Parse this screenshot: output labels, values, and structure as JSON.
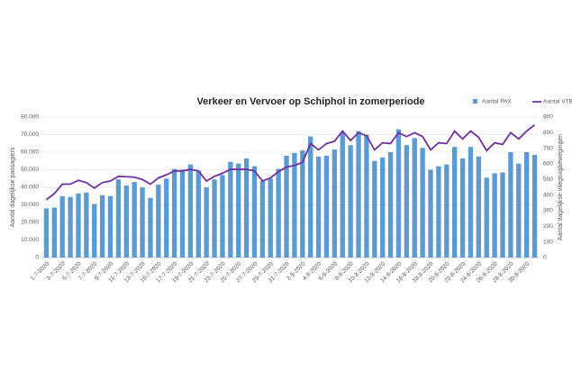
{
  "chart_data": {
    "type": "bar",
    "title": "Verkeer en Vervoer op Schiphol in zomerperiode",
    "y_label": "Aantal dagelijkse passagiers",
    "y2_label": "Aantal dagelijkse vliegtuigbewegingen",
    "categories": [
      "1-7-2020",
      null,
      "3-7-2020",
      null,
      "5-7-2020",
      null,
      "7-7-2020",
      null,
      "9-7-2020",
      null,
      "11-7-2020",
      null,
      "13-7-2020",
      null,
      "15-7-2020",
      null,
      "17-7-2020",
      null,
      "19-7-2020",
      null,
      "21-7-2020",
      null,
      "23-7-2020",
      null,
      "25-7-2020",
      null,
      "27-7-2020",
      null,
      "29-7-2020",
      null,
      "31-7-2020",
      null,
      "2-8-2020",
      null,
      "4-8-2020",
      null,
      "6-8-2020",
      null,
      "8-8-2020",
      null,
      "10-8-2020",
      null,
      "12-8-2020",
      null,
      "14-8-2020",
      null,
      "16-8-2020",
      null,
      "18-8-2020",
      null,
      "20-8-2020",
      null,
      "22-8-2020",
      null,
      "24-8-2020",
      null,
      "26-8-2020",
      null,
      "28-8-2020",
      null,
      "30-8-2020",
      null
    ],
    "series": [
      {
        "name": "Aantal PAX",
        "color": "#5b9bd5",
        "values": [
          28000,
          28500,
          35000,
          34500,
          36500,
          37000,
          30500,
          35500,
          35000,
          44500,
          41000,
          43000,
          40000,
          34000,
          41500,
          45000,
          50500,
          50000,
          53000,
          49500,
          40000,
          44500,
          47000,
          54500,
          53500,
          56500,
          52000,
          43500,
          45000,
          50500,
          58000,
          59500,
          61000,
          69000,
          57500,
          58000,
          61500,
          71500,
          64000,
          72000,
          70000,
          55000,
          57000,
          60000,
          73000,
          64000,
          68000,
          62500,
          50000,
          52000,
          53000,
          63000,
          56500,
          63000,
          57500,
          45500,
          48000,
          48500,
          60000,
          53500,
          60000,
          58500
        ]
      },
      {
        "name": "Aantal VTB",
        "color": "#7030a0",
        "axis": "y2",
        "values": [
          370,
          410,
          470,
          470,
          495,
          480,
          445,
          480,
          490,
          520,
          518,
          515,
          500,
          470,
          510,
          530,
          555,
          555,
          565,
          555,
          490,
          520,
          540,
          565,
          565,
          565,
          555,
          490,
          510,
          550,
          580,
          590,
          610,
          730,
          690,
          730,
          745,
          810,
          750,
          800,
          780,
          690,
          735,
          730,
          800,
          775,
          800,
          775,
          690,
          735,
          730,
          810,
          760,
          810,
          770,
          685,
          735,
          725,
          800,
          760,
          810,
          850
        ]
      }
    ],
    "ylim": [
      0,
      80000
    ],
    "yticks": [
      0,
      {
        "value": 10000,
        "label": "10.000"
      },
      {
        "value": 20000,
        "label": "20.000"
      },
      {
        "value": 30000,
        "label": "30.000"
      },
      {
        "value": 40000,
        "label": "40.000"
      },
      {
        "value": 50000,
        "label": "50.000"
      },
      {
        "value": 60000,
        "label": "60.000"
      },
      {
        "value": 70000,
        "label": "70.000"
      },
      {
        "value": 80000,
        "label": "80.000"
      }
    ],
    "y2lim": [
      0,
      900
    ],
    "y2ticks": [
      0,
      100,
      200,
      300,
      400,
      500,
      600,
      700,
      800,
      900
    ],
    "legend": "top-right"
  }
}
